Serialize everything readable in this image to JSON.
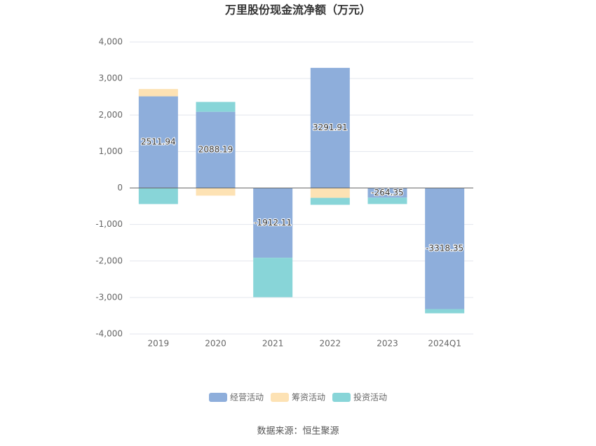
{
  "chart_data": {
    "type": "bar",
    "stacked": true,
    "title": "万里股份现金流净额（万元）",
    "categories": [
      "2019",
      "2020",
      "2021",
      "2022",
      "2023",
      "2024Q1"
    ],
    "series": [
      {
        "name": "经营活动",
        "color": "#8eaedb",
        "values": [
          2511.94,
          2088.19,
          -1912.11,
          3291.91,
          -264.35,
          -3318.35
        ]
      },
      {
        "name": "筹资活动",
        "color": "#fde2b4",
        "values": [
          200,
          -210,
          0,
          -270,
          0,
          0
        ]
      },
      {
        "name": "投资活动",
        "color": "#88d5d8",
        "values": [
          -440,
          270,
          -1080,
          -190,
          -175,
          -115
        ]
      }
    ],
    "ylim": [
      -4000,
      4000
    ],
    "yticks": [
      {
        "value": -4000,
        "label": "-4,000"
      },
      {
        "value": -3000,
        "label": "-3,000"
      },
      {
        "value": -2000,
        "label": "-2,000"
      },
      {
        "value": -1000,
        "label": "-1,000"
      },
      0,
      {
        "value": 1000,
        "label": "1,000"
      },
      {
        "value": 2000,
        "label": "2,000"
      },
      {
        "value": 3000,
        "label": "3,000"
      },
      {
        "value": 4000,
        "label": "4,000"
      }
    ],
    "grid": true,
    "value_labels_series": 0,
    "source": "数据来源：恒生聚源"
  }
}
